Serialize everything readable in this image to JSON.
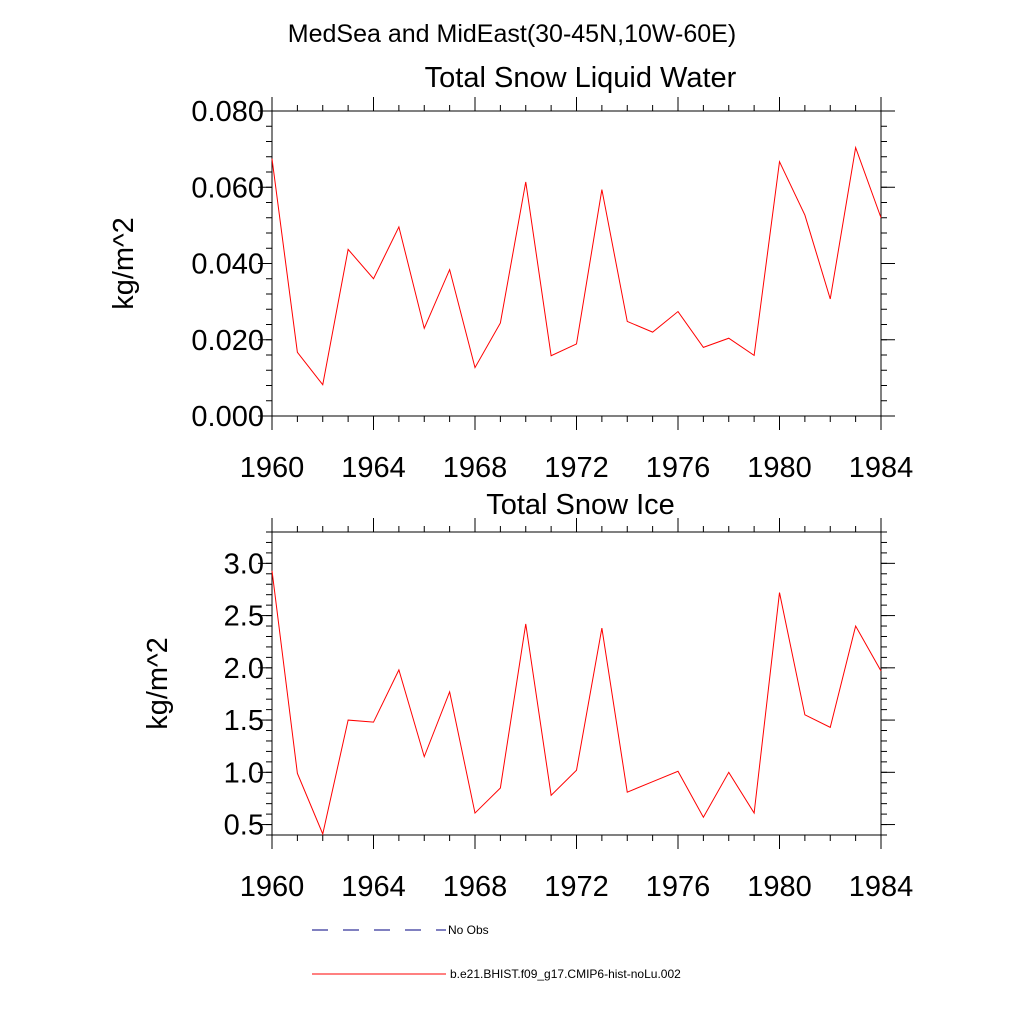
{
  "figure": {
    "suptitle": "MedSea and MidEast(30-45N,10W-60E)"
  },
  "chart_data": [
    {
      "type": "line",
      "title": "Total Snow Liquid Water",
      "xlabel": "",
      "ylabel": "kg/m^2",
      "xlim": [
        1960,
        1984
      ],
      "ylim": [
        0.0,
        0.08
      ],
      "xticks": [
        1960,
        1964,
        1968,
        1972,
        1976,
        1980,
        1984
      ],
      "xtick_labels": [
        "1960",
        "1964",
        "1968",
        "1972",
        "1976",
        "1980",
        "1984"
      ],
      "yticks": [
        0.0,
        0.02,
        0.04,
        0.06,
        0.08
      ],
      "ytick_labels": [
        "0.000",
        "0.020",
        "0.040",
        "0.060",
        "0.080"
      ],
      "y_minor_step": 0.004,
      "x_minor_step": 1,
      "grid": false,
      "x": [
        1960,
        1961,
        1962,
        1963,
        1964,
        1965,
        1966,
        1967,
        1968,
        1969,
        1970,
        1971,
        1972,
        1973,
        1974,
        1975,
        1976,
        1977,
        1978,
        1979,
        1980,
        1981,
        1982,
        1983,
        1984
      ],
      "series": [
        {
          "name": "b.e21.BHIST.f09_g17.CMIP6-hist-noLu.002",
          "color": "#ff0000",
          "values": [
            0.0675,
            0.0167,
            0.0082,
            0.0437,
            0.036,
            0.0496,
            0.023,
            0.0384,
            0.0127,
            0.0244,
            0.0614,
            0.0158,
            0.0189,
            0.0594,
            0.0248,
            0.022,
            0.0274,
            0.018,
            0.0204,
            0.0159,
            0.0667,
            0.0527,
            0.0307,
            0.0704,
            0.052
          ]
        }
      ]
    },
    {
      "type": "line",
      "title": "Total Snow Ice",
      "xlabel": "",
      "ylabel": "kg/m^2",
      "xlim": [
        1960,
        1984
      ],
      "ylim": [
        0.4,
        3.3
      ],
      "xticks": [
        1960,
        1964,
        1968,
        1972,
        1976,
        1980,
        1984
      ],
      "xtick_labels": [
        "1960",
        "1964",
        "1968",
        "1972",
        "1976",
        "1980",
        "1984"
      ],
      "yticks": [
        0.5,
        1.0,
        1.5,
        2.0,
        2.5,
        3.0
      ],
      "ytick_labels": [
        "0.5",
        "1.0",
        "1.5",
        "2.0",
        "2.5",
        "3.0"
      ],
      "y_minor_step": 0.1,
      "x_minor_step": 1,
      "grid": false,
      "x": [
        1960,
        1961,
        1962,
        1963,
        1964,
        1965,
        1966,
        1967,
        1968,
        1969,
        1970,
        1971,
        1972,
        1973,
        1974,
        1975,
        1976,
        1977,
        1978,
        1979,
        1980,
        1981,
        1982,
        1983,
        1984
      ],
      "series": [
        {
          "name": "b.e21.BHIST.f09_g17.CMIP6-hist-noLu.002",
          "color": "#ff0000",
          "values": [
            2.93,
            0.99,
            0.41,
            1.5,
            1.48,
            1.98,
            1.15,
            1.77,
            0.61,
            0.85,
            2.42,
            0.78,
            1.02,
            2.38,
            0.81,
            0.91,
            1.01,
            0.57,
            1.0,
            0.61,
            2.72,
            1.55,
            1.43,
            2.4,
            1.97
          ]
        }
      ]
    }
  ],
  "legend": {
    "placement": "bottom",
    "items": [
      {
        "label": "No Obs",
        "color": "#000080",
        "style": "dashed"
      },
      {
        "label": "b.e21.BHIST.f09_g17.CMIP6-hist-noLu.002",
        "color": "#ff0000",
        "style": "solid"
      }
    ]
  }
}
